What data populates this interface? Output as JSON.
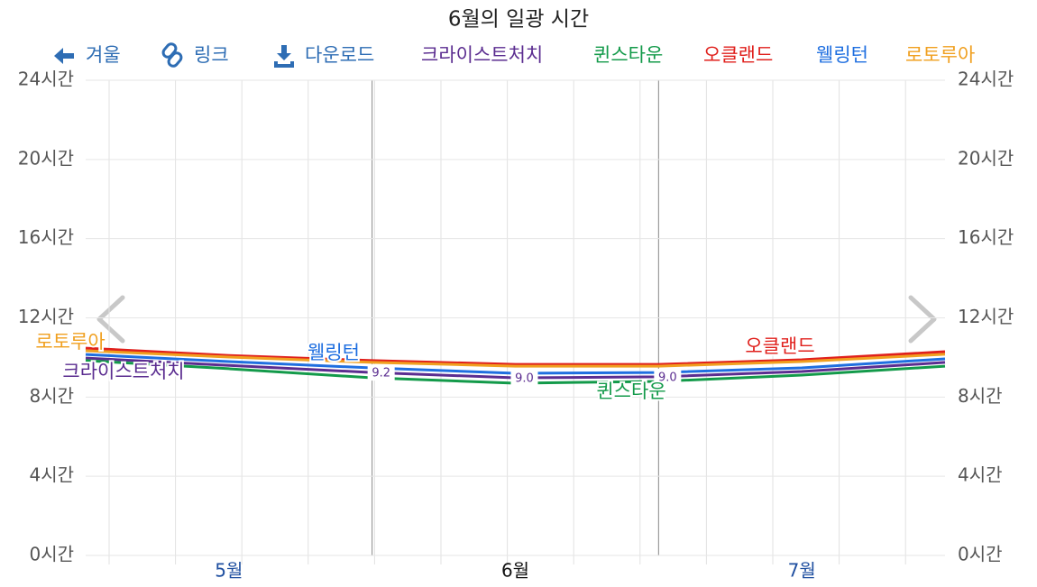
{
  "toolbar": [
    "겨울",
    "링크",
    "다운로드"
  ],
  "chart_data": {
    "type": "line",
    "title": "6월의 일광 시간",
    "categories": [
      null,
      "5월",
      null,
      "6월",
      null,
      "7월",
      null
    ],
    "ylim": [
      0,
      24
    ],
    "yticks": [
      {
        "value": 0,
        "label": "0시간"
      },
      {
        "value": 4,
        "label": "4시간"
      },
      {
        "value": 8,
        "label": "8시간"
      },
      {
        "value": 12,
        "label": "12시간"
      },
      {
        "value": 16,
        "label": "16시간"
      },
      {
        "value": 20,
        "label": "20시간"
      },
      {
        "value": 24,
        "label": "24시간"
      }
    ],
    "grid": true,
    "series": [
      {
        "name": "크라이스트처치",
        "color": "#5b2d90",
        "values": [
          9.97,
          9.6,
          9.24,
          8.97,
          9.02,
          9.29,
          9.75
        ],
        "value_labels": [
          null,
          null,
          "9.2",
          "9.0",
          "9.0",
          null,
          null
        ]
      },
      {
        "name": "퀸스타운",
        "color": "#139a4a",
        "values": [
          9.84,
          9.43,
          8.97,
          8.7,
          8.79,
          9.11,
          9.56
        ]
      },
      {
        "name": "오클랜드",
        "color": "#e0201c",
        "values": [
          10.47,
          10.1,
          9.84,
          9.65,
          9.65,
          9.88,
          10.29
        ]
      },
      {
        "name": "웰링턴",
        "color": "#1f6fe0",
        "values": [
          10.15,
          9.79,
          9.47,
          9.2,
          9.24,
          9.47,
          9.93
        ]
      },
      {
        "name": "로토루아",
        "color": "#f0a020",
        "values": [
          10.34,
          10.02,
          9.75,
          9.56,
          9.56,
          9.79,
          10.16
        ]
      }
    ]
  }
}
